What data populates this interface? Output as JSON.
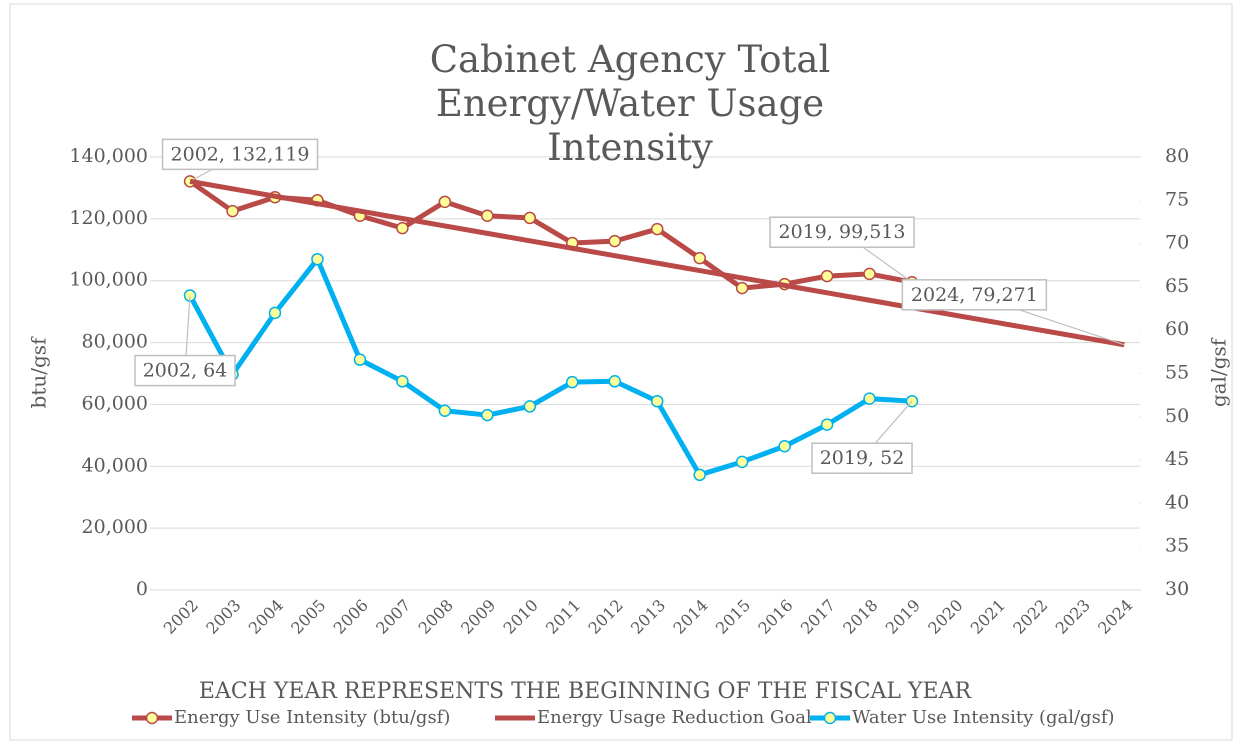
{
  "chart_data": {
    "type": "line",
    "title": "Cabinet Agency Total Energy/Water Usage Intensity",
    "x_label": "EACH YEAR REPRESENTS THE BEGINNING OF THE FISCAL YEAR",
    "y_label": "btu/gsf",
    "y2_label": "gal/gsf",
    "categories": [
      "2002",
      "2003",
      "2004",
      "2005",
      "2006",
      "2007",
      "2008",
      "2009",
      "2010",
      "2011",
      "2012",
      "2013",
      "2014",
      "2015",
      "2016",
      "2017",
      "2018",
      "2019",
      "2020",
      "2021",
      "2022",
      "2023",
      "2024"
    ],
    "ylim": [
      0,
      140000
    ],
    "yticks": [
      0,
      {
        "value": 20000,
        "label": "20,000"
      },
      {
        "value": 40000,
        "label": "40,000"
      },
      {
        "value": 60000,
        "label": "60,000"
      },
      {
        "value": 80000,
        "label": "80,000"
      },
      {
        "value": 100000,
        "label": "100,000"
      },
      {
        "value": 120000,
        "label": "120,000"
      },
      {
        "value": 140000,
        "label": "140,000"
      }
    ],
    "y2lim": [
      30,
      80
    ],
    "y2ticks": [
      30,
      35,
      40,
      45,
      50,
      55,
      60,
      65,
      70,
      75,
      80
    ],
    "grid": true,
    "legend": "bottom",
    "series": [
      {
        "name": "Energy Use Intensity (btu/gsf)",
        "color": "#b94a48",
        "marker_fill": "#ffff99",
        "values": [
          132119,
          122500,
          127000,
          126000,
          121000,
          117000,
          125500,
          121000,
          120300,
          112200,
          112800,
          116700,
          107300,
          97600,
          98900,
          101500,
          102200,
          99513,
          null,
          null,
          null,
          null,
          null
        ],
        "value_labels": [
          "2002, 132,119",
          null,
          null,
          null,
          null,
          null,
          null,
          null,
          null,
          null,
          null,
          null,
          null,
          null,
          null,
          null,
          null,
          "2019, 99,513",
          null,
          null,
          null,
          null,
          null
        ]
      },
      {
        "name": "Energy Usage Reduction Goal",
        "color": "#b94a48",
        "values": [
          132119,
          129717,
          127315,
          124912,
          122510,
          120108,
          117706,
          115304,
          112902,
          110499,
          108097,
          105695,
          103293,
          100891,
          98488,
          96086,
          93684,
          91282,
          88880,
          86478,
          84075,
          81673,
          79271
        ],
        "value_labels": [
          null,
          null,
          null,
          null,
          null,
          null,
          null,
          null,
          null,
          null,
          null,
          null,
          null,
          null,
          null,
          null,
          null,
          null,
          null,
          null,
          null,
          null,
          "2024, 79,271"
        ]
      },
      {
        "name": "Water Use Intensity (gal/gsf)",
        "color": "#00b0f0",
        "marker_fill": "#ffff99",
        "axis": "y2",
        "values": [
          64,
          54.9,
          62.0,
          68.2,
          56.6,
          54.1,
          50.7,
          50.2,
          51.2,
          54.0,
          54.1,
          51.8,
          43.3,
          44.8,
          46.6,
          49.1,
          52.1,
          51.8,
          null,
          null,
          null,
          null,
          null
        ],
        "value_labels": [
          "2002, 64",
          null,
          null,
          null,
          null,
          null,
          null,
          null,
          null,
          null,
          null,
          null,
          null,
          null,
          null,
          null,
          null,
          "2019, 52",
          null,
          null,
          null,
          null,
          null
        ]
      }
    ]
  }
}
